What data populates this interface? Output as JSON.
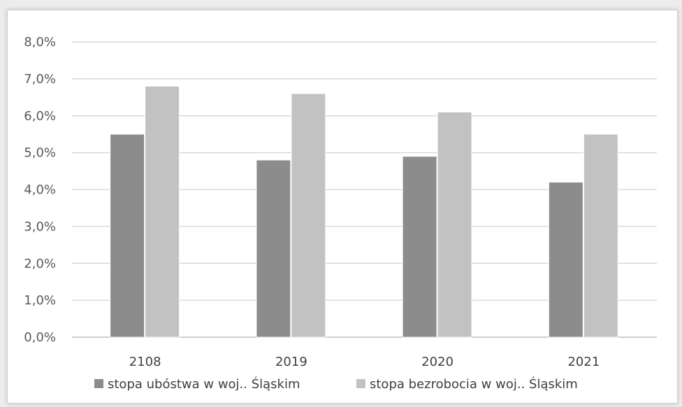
{
  "chart_data": {
    "type": "bar",
    "categories": [
      "2108",
      "2019",
      "2020",
      "2021"
    ],
    "series": [
      {
        "name": "stopa ubóstwa w woj.. Śląskim",
        "values": [
          5.5,
          4.8,
          4.9,
          4.2
        ],
        "color": "#8c8c8c"
      },
      {
        "name": "stopa bezrobocia w woj.. Śląskim",
        "values": [
          6.8,
          6.6,
          6.1,
          5.5
        ],
        "color": "#c2c2c2"
      }
    ],
    "y_ticks": [
      "0,0%",
      "1,0%",
      "2,0%",
      "3,0%",
      "4,0%",
      "5,0%",
      "6,0%",
      "7,0%",
      "8,0%"
    ],
    "ylim": [
      0,
      8
    ],
    "y_unit": "%",
    "grid": true,
    "legend_position": "bottom",
    "title": "",
    "xlabel": "",
    "ylabel": ""
  }
}
